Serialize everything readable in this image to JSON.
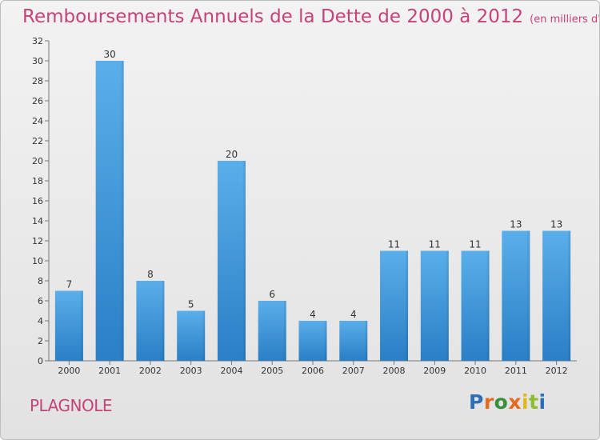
{
  "header": {
    "title": "Remboursements Annuels de la Dette de 2000 à 2012",
    "unit": "(en milliers d'€)"
  },
  "footer": {
    "commune": "PLAGNOLE",
    "brand": "Proxiti"
  },
  "colors": {
    "title": "#c6427a",
    "bar_light": "#5aaeea",
    "bar_dark": "#2a7fc6"
  },
  "chart_data": {
    "type": "bar",
    "title": "Remboursements Annuels de la Dette de 2000 à 2012",
    "subtitle": "(en milliers d'€)",
    "categories": [
      "2000",
      "2001",
      "2002",
      "2003",
      "2004",
      "2005",
      "2006",
      "2007",
      "2008",
      "2009",
      "2010",
      "2011",
      "2012"
    ],
    "values": [
      7,
      30,
      8,
      5,
      20,
      6,
      4,
      4,
      11,
      11,
      11,
      13,
      13
    ],
    "ylim": [
      0,
      32
    ],
    "yticks": [
      0,
      2,
      4,
      6,
      8,
      10,
      12,
      14,
      16,
      18,
      20,
      22,
      24,
      26,
      28,
      30,
      32
    ],
    "grid": false,
    "legend": "none"
  }
}
